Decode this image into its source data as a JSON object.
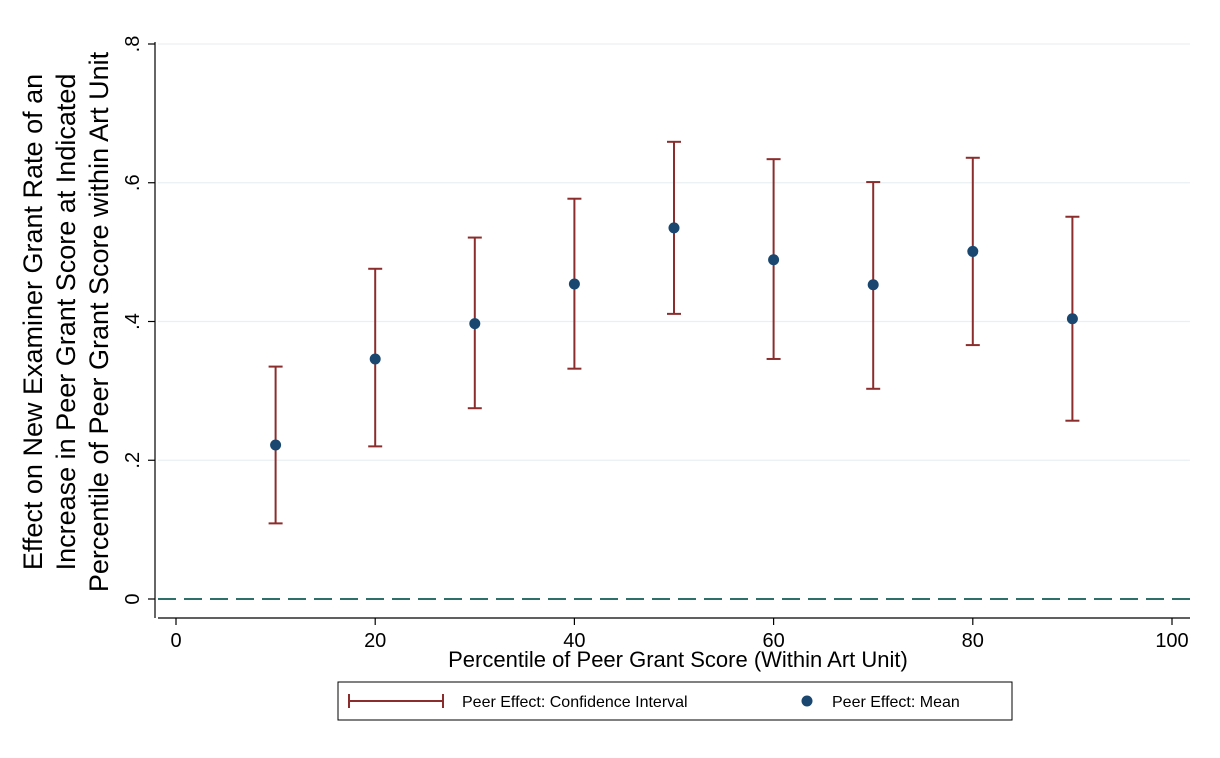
{
  "chart_data": {
    "type": "scatter",
    "xlabel": "Percentile of Peer Grant Score (Within Art Unit)",
    "ylabel_lines": [
      "Effect on New Examiner Grant Rate of an",
      "Increase in Peer Grant Score at Indicated",
      "Percentile of Peer Grant Score within Art Unit"
    ],
    "xlim": [
      0,
      100
    ],
    "ylim": [
      0,
      0.8
    ],
    "x_ticks": [
      0,
      20,
      40,
      60,
      80,
      100
    ],
    "x_tick_labels": [
      "0",
      "20",
      "40",
      "60",
      "80",
      "100"
    ],
    "y_ticks": [
      0,
      0.2,
      0.4,
      0.6,
      0.8
    ],
    "y_tick_labels": [
      "0",
      ".2",
      ".4",
      ".6",
      ".8"
    ],
    "grid": true,
    "reference_line": {
      "y": 0,
      "style": "dashed"
    },
    "x": [
      10,
      20,
      30,
      40,
      50,
      60,
      70,
      80,
      90
    ],
    "series": [
      {
        "name": "Peer Effect: Mean",
        "values": [
          0.222,
          0.346,
          0.397,
          0.454,
          0.535,
          0.489,
          0.453,
          0.501,
          0.404
        ]
      },
      {
        "name": "Peer Effect: Confidence Interval",
        "lower": [
          0.109,
          0.22,
          0.275,
          0.332,
          0.411,
          0.346,
          0.303,
          0.366,
          0.257
        ],
        "upper": [
          0.335,
          0.476,
          0.521,
          0.577,
          0.659,
          0.634,
          0.601,
          0.636,
          0.551
        ]
      }
    ],
    "legend": {
      "position": "bottom-center",
      "items": [
        "Peer Effect: Confidence Interval",
        "Peer Effect: Mean"
      ]
    },
    "colors": {
      "ci": "#8c2d2d",
      "mean": "#1a476f",
      "reference": "#2f6f6a",
      "grid": "#eaf0f2"
    }
  }
}
